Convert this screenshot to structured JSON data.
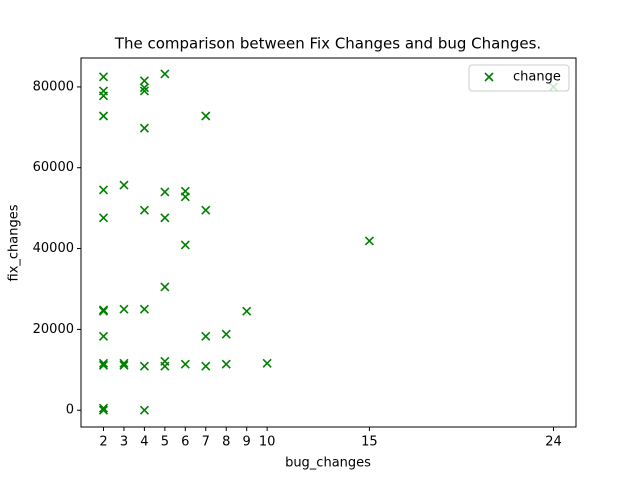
{
  "chart_data": {
    "type": "scatter",
    "title": "The comparison between Fix Changes and bug Changes.",
    "xlabel": "bug_changes",
    "ylabel": "fix_changes",
    "legend": "upper right",
    "grid": false,
    "series": [
      {
        "name": "change",
        "color": "#008000",
        "marker": "x",
        "x": [
          2,
          2,
          2,
          2,
          2,
          2,
          2,
          2,
          2,
          2,
          2,
          2,
          2,
          3,
          3,
          3,
          3,
          4,
          4,
          4,
          4,
          4,
          4,
          4,
          4,
          5,
          5,
          5,
          5,
          5,
          5,
          6,
          6,
          6,
          6,
          7,
          7,
          7,
          7,
          8,
          8,
          9,
          10,
          15,
          24
        ],
        "values": [
          82500,
          79000,
          77800,
          72800,
          54500,
          47600,
          24800,
          24500,
          18300,
          11600,
          11100,
          500,
          0,
          55700,
          25000,
          11600,
          11100,
          81500,
          79800,
          79000,
          69800,
          49500,
          25000,
          10900,
          0,
          83200,
          54000,
          47600,
          30500,
          12100,
          10900,
          54200,
          52800,
          40900,
          11400,
          72800,
          49500,
          18300,
          10900,
          18800,
          11400,
          24500,
          11600,
          41900,
          80000
        ]
      }
    ],
    "xlim": [
      0.9,
      25.1
    ],
    "xticks": [
      2,
      3,
      4,
      5,
      6,
      7,
      8,
      9,
      10,
      15,
      24
    ],
    "ylim": [
      -4150,
      87150
    ],
    "yticks": [
      0,
      20000,
      40000,
      60000,
      80000
    ]
  }
}
